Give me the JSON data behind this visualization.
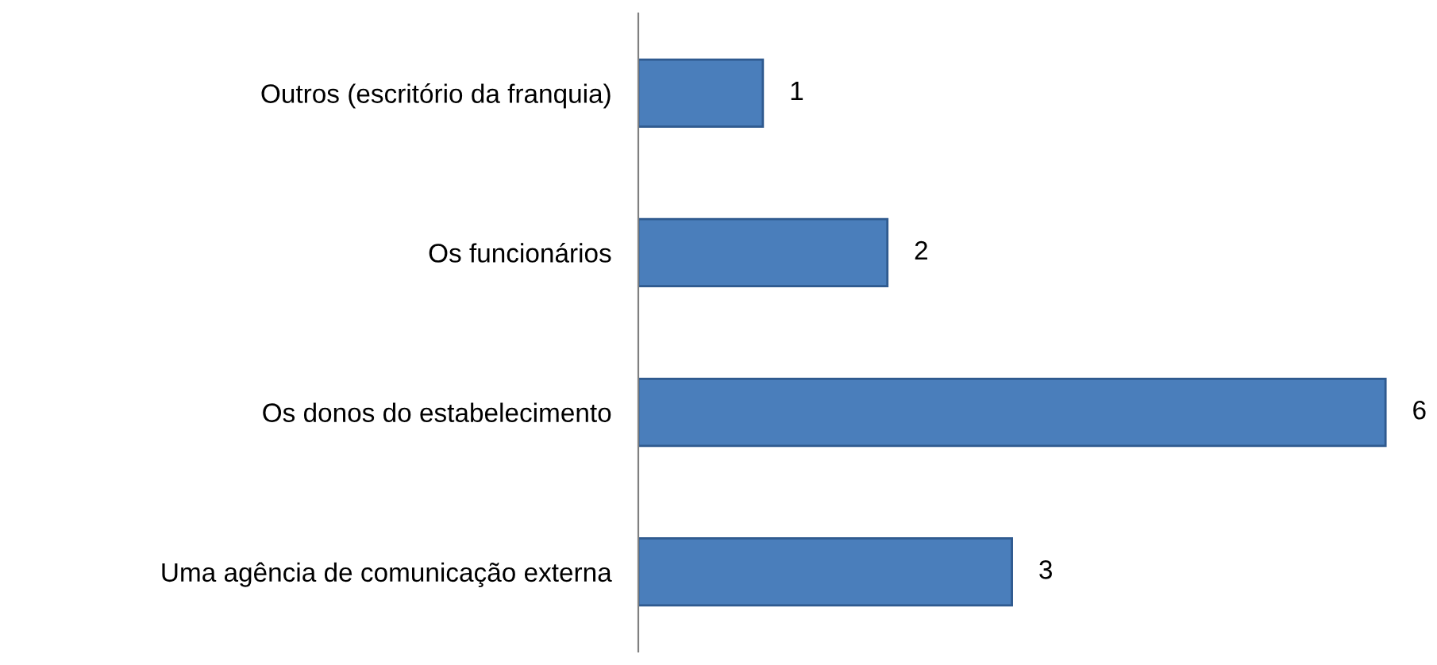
{
  "chart_data": {
    "type": "bar",
    "orientation": "horizontal",
    "categories": [
      "Outros (escritório da franquia)",
      "Os funcionários",
      "Os donos do estabelecimento",
      "Uma agência de comunicação externa"
    ],
    "values": [
      1,
      2,
      6,
      3
    ],
    "color": "#4a7ebb",
    "data_labels": true,
    "grid": false,
    "legend": false
  }
}
